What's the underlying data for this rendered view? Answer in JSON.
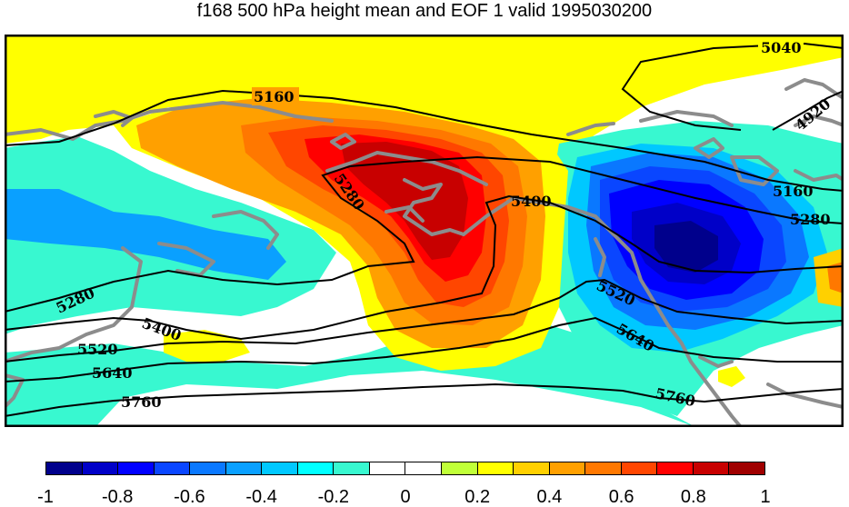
{
  "title": "f168 500 hPa height mean and EOF 1 valid 1995030200",
  "map": {
    "contour_labels": [
      {
        "text": "5040"
      },
      {
        "text": "4920"
      },
      {
        "text": "5160"
      },
      {
        "text": "5160"
      },
      {
        "text": "5280"
      },
      {
        "text": "5280"
      },
      {
        "text": "5280"
      },
      {
        "text": "5400"
      },
      {
        "text": "5400"
      },
      {
        "text": "5520"
      },
      {
        "text": "5520"
      },
      {
        "text": "5640"
      },
      {
        "text": "5640"
      },
      {
        "text": "5760"
      },
      {
        "text": "5760"
      }
    ],
    "colors": {
      "coastline": "#8c8c8c",
      "contour": "#000000"
    }
  },
  "colorbar": {
    "colors": [
      "#00008c",
      "#0000c8",
      "#0000ff",
      "#0a46ff",
      "#0a78ff",
      "#0aa0ff",
      "#00c8ff",
      "#00ffff",
      "#38f8d0",
      "#ffffff",
      "#ffffff",
      "#c0ff38",
      "#ffff00",
      "#ffd000",
      "#ffa000",
      "#ff7800",
      "#ff4600",
      "#ff0000",
      "#c80000",
      "#a00000"
    ],
    "tick_labels": [
      "-1",
      "-0.8",
      "-0.6",
      "-0.4",
      "-0.2",
      "0",
      "0.2",
      "0.4",
      "0.6",
      "0.8",
      "1"
    ]
  }
}
